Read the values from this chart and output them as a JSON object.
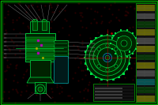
{
  "bg_color": "#000000",
  "outer_border_color": "#00aa00",
  "dot_color": "#330000",
  "line_color": "#00dd44",
  "dim_line_color": "#aaaaaa",
  "cyan_color": "#00aaaa",
  "magenta_color": "#aa00aa",
  "red_color": "#aa0000",
  "yellow_color": "#aaaa00",
  "dark_green": "#002200",
  "mid_green": "#004400",
  "bright_green": "#00ff66"
}
